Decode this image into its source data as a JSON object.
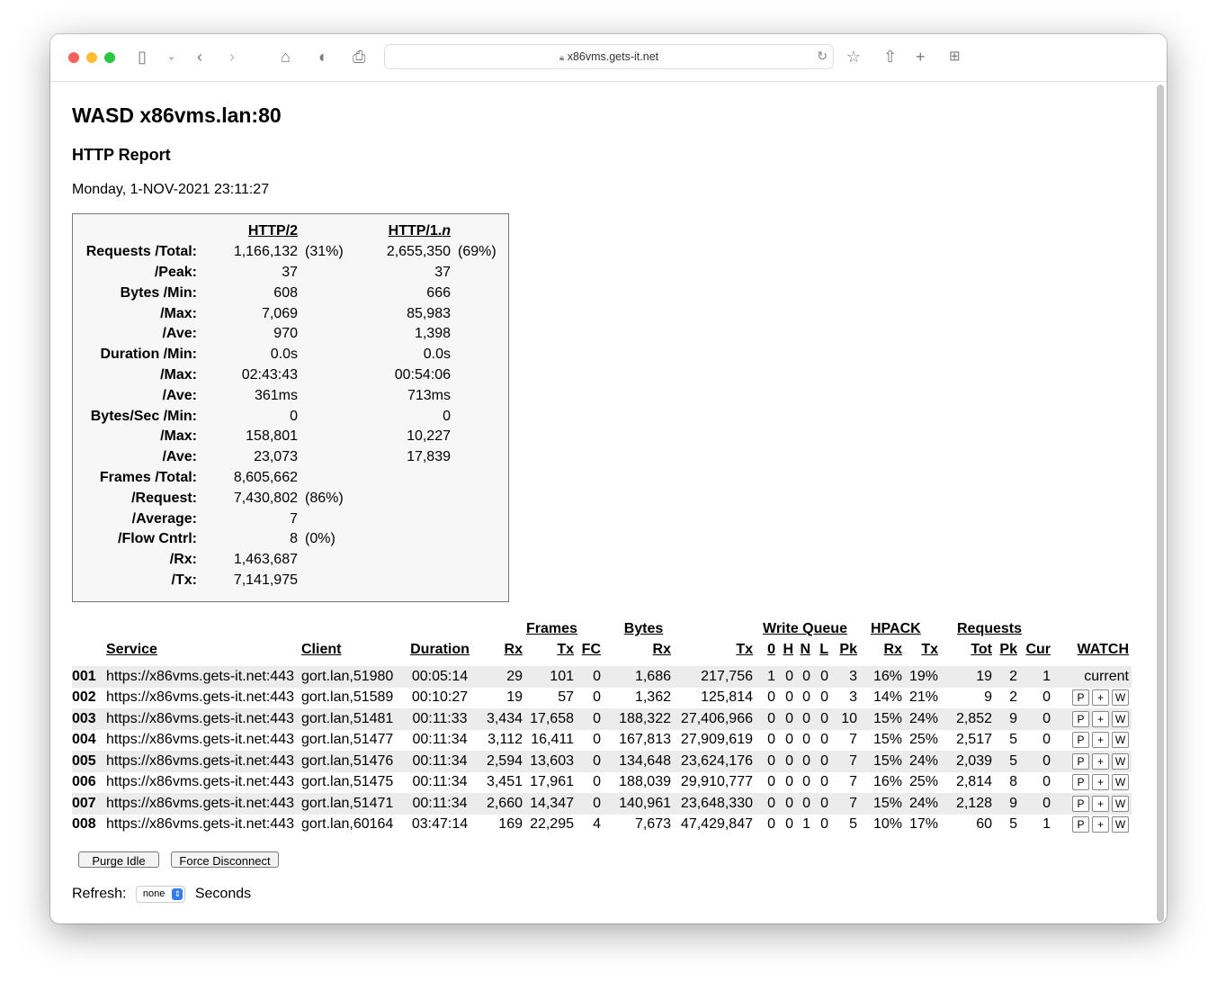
{
  "browser": {
    "url": "x86vms.gets-it.net",
    "icons": [
      "sidebar-icon",
      "chevron-down-icon",
      "back-icon",
      "forward-icon",
      "home-icon",
      "shield-icon",
      "print-icon",
      "lock-icon",
      "reload-icon",
      "star-icon",
      "share-icon",
      "plus-icon",
      "tabs-grid-icon"
    ]
  },
  "page": {
    "title": "WASD x86vms.lan:80",
    "subtitle": "HTTP Report",
    "date": "Monday, 1-NOV-2021 23:11:27"
  },
  "summary": {
    "headers": [
      "HTTP/2",
      "HTTP/1.",
      "n"
    ],
    "rows": [
      {
        "label": "Requests  /Total:",
        "h2": "1,166,132",
        "h2p": "(31%)",
        "h1": "2,655,350",
        "h1p": "(69%)"
      },
      {
        "label": "/Peak:",
        "h2": "37",
        "h2p": "",
        "h1": "37",
        "h1p": ""
      },
      {
        "label": "Bytes  /Min:",
        "h2": "608",
        "h2p": "",
        "h1": "666",
        "h1p": ""
      },
      {
        "label": "/Max:",
        "h2": "7,069",
        "h2p": "",
        "h1": "85,983",
        "h1p": ""
      },
      {
        "label": "/Ave:",
        "h2": "970",
        "h2p": "",
        "h1": "1,398",
        "h1p": ""
      },
      {
        "label": "Duration  /Min:",
        "h2": "0.0s",
        "h2p": "",
        "h1": "0.0s",
        "h1p": ""
      },
      {
        "label": "/Max:",
        "h2": "02:43:43",
        "h2p": "",
        "h1": "00:54:06",
        "h1p": ""
      },
      {
        "label": "/Ave:",
        "h2": "361ms",
        "h2p": "",
        "h1": "713ms",
        "h1p": ""
      },
      {
        "label": "Bytes/Sec  /Min:",
        "h2": "0",
        "h2p": "",
        "h1": "0",
        "h1p": ""
      },
      {
        "label": "/Max:",
        "h2": "158,801",
        "h2p": "",
        "h1": "10,227",
        "h1p": ""
      },
      {
        "label": "/Ave:",
        "h2": "23,073",
        "h2p": "",
        "h1": "17,839",
        "h1p": ""
      },
      {
        "label": "Frames  /Total:",
        "h2": "8,605,662",
        "h2p": "",
        "h1": "",
        "h1p": ""
      },
      {
        "label": "/Request:",
        "h2": "7,430,802",
        "h2p": "(86%)",
        "h1": "",
        "h1p": ""
      },
      {
        "label": "/Average:",
        "h2": "7",
        "h2p": "",
        "h1": "",
        "h1p": ""
      },
      {
        "label": "/Flow Cntrl:",
        "h2": "8",
        "h2p": "(0%)",
        "h1": "",
        "h1p": ""
      },
      {
        "label": "/Rx:",
        "h2": "1,463,687",
        "h2p": "",
        "h1": "",
        "h1p": ""
      },
      {
        "label": "/Tx:",
        "h2": "7,141,975",
        "h2p": "",
        "h1": "",
        "h1p": ""
      }
    ]
  },
  "connections": {
    "groups": {
      "frames": "Frames",
      "bytes": "Bytes",
      "write_queue": "Write Queue",
      "hpack": "HPACK",
      "requests": "Requests"
    },
    "columns": [
      "Service",
      "Client",
      "Duration",
      "Rx",
      "Tx",
      "FC",
      "Rx",
      "Tx",
      "0",
      "H",
      "N",
      "L",
      "Pk",
      "Rx",
      "Tx",
      "Tot",
      "Pk",
      "Cur",
      "WATCH"
    ],
    "watch_buttons": [
      "P",
      "+",
      "W"
    ],
    "rows": [
      [
        "001",
        "https://x86vms.gets-it.net:443",
        "gort.lan,51980",
        "00:05:14",
        "29",
        "101",
        "0",
        "1,686",
        "217,756",
        "1",
        "0",
        "0",
        "0",
        "3",
        "16%",
        "19%",
        "19",
        "2",
        "1",
        "current"
      ],
      [
        "002",
        "https://x86vms.gets-it.net:443",
        "gort.lan,51589",
        "00:10:27",
        "19",
        "57",
        "0",
        "1,362",
        "125,814",
        "0",
        "0",
        "0",
        "0",
        "3",
        "14%",
        "21%",
        "9",
        "2",
        "0",
        ""
      ],
      [
        "003",
        "https://x86vms.gets-it.net:443",
        "gort.lan,51481",
        "00:11:33",
        "3,434",
        "17,658",
        "0",
        "188,322",
        "27,406,966",
        "0",
        "0",
        "0",
        "0",
        "10",
        "15%",
        "24%",
        "2,852",
        "9",
        "0",
        ""
      ],
      [
        "004",
        "https://x86vms.gets-it.net:443",
        "gort.lan,51477",
        "00:11:34",
        "3,112",
        "16,411",
        "0",
        "167,813",
        "27,909,619",
        "0",
        "0",
        "0",
        "0",
        "7",
        "15%",
        "25%",
        "2,517",
        "5",
        "0",
        ""
      ],
      [
        "005",
        "https://x86vms.gets-it.net:443",
        "gort.lan,51476",
        "00:11:34",
        "2,594",
        "13,603",
        "0",
        "134,648",
        "23,624,176",
        "0",
        "0",
        "0",
        "0",
        "7",
        "15%",
        "24%",
        "2,039",
        "5",
        "0",
        ""
      ],
      [
        "006",
        "https://x86vms.gets-it.net:443",
        "gort.lan,51475",
        "00:11:34",
        "3,451",
        "17,961",
        "0",
        "188,039",
        "29,910,777",
        "0",
        "0",
        "0",
        "0",
        "7",
        "16%",
        "25%",
        "2,814",
        "8",
        "0",
        ""
      ],
      [
        "007",
        "https://x86vms.gets-it.net:443",
        "gort.lan,51471",
        "00:11:34",
        "2,660",
        "14,347",
        "0",
        "140,961",
        "23,648,330",
        "0",
        "0",
        "0",
        "0",
        "7",
        "15%",
        "24%",
        "2,128",
        "9",
        "0",
        ""
      ],
      [
        "008",
        "https://x86vms.gets-it.net:443",
        "gort.lan,60164",
        "03:47:14",
        "169",
        "22,295",
        "4",
        "7,673",
        "47,429,847",
        "0",
        "0",
        "1",
        "0",
        "5",
        "10%",
        "17%",
        "60",
        "5",
        "1",
        ""
      ]
    ]
  },
  "actions": {
    "purge": "Purge Idle",
    "disconnect": "Force Disconnect"
  },
  "refresh": {
    "label": "Refresh:",
    "value": "none",
    "unit": "Seconds"
  }
}
